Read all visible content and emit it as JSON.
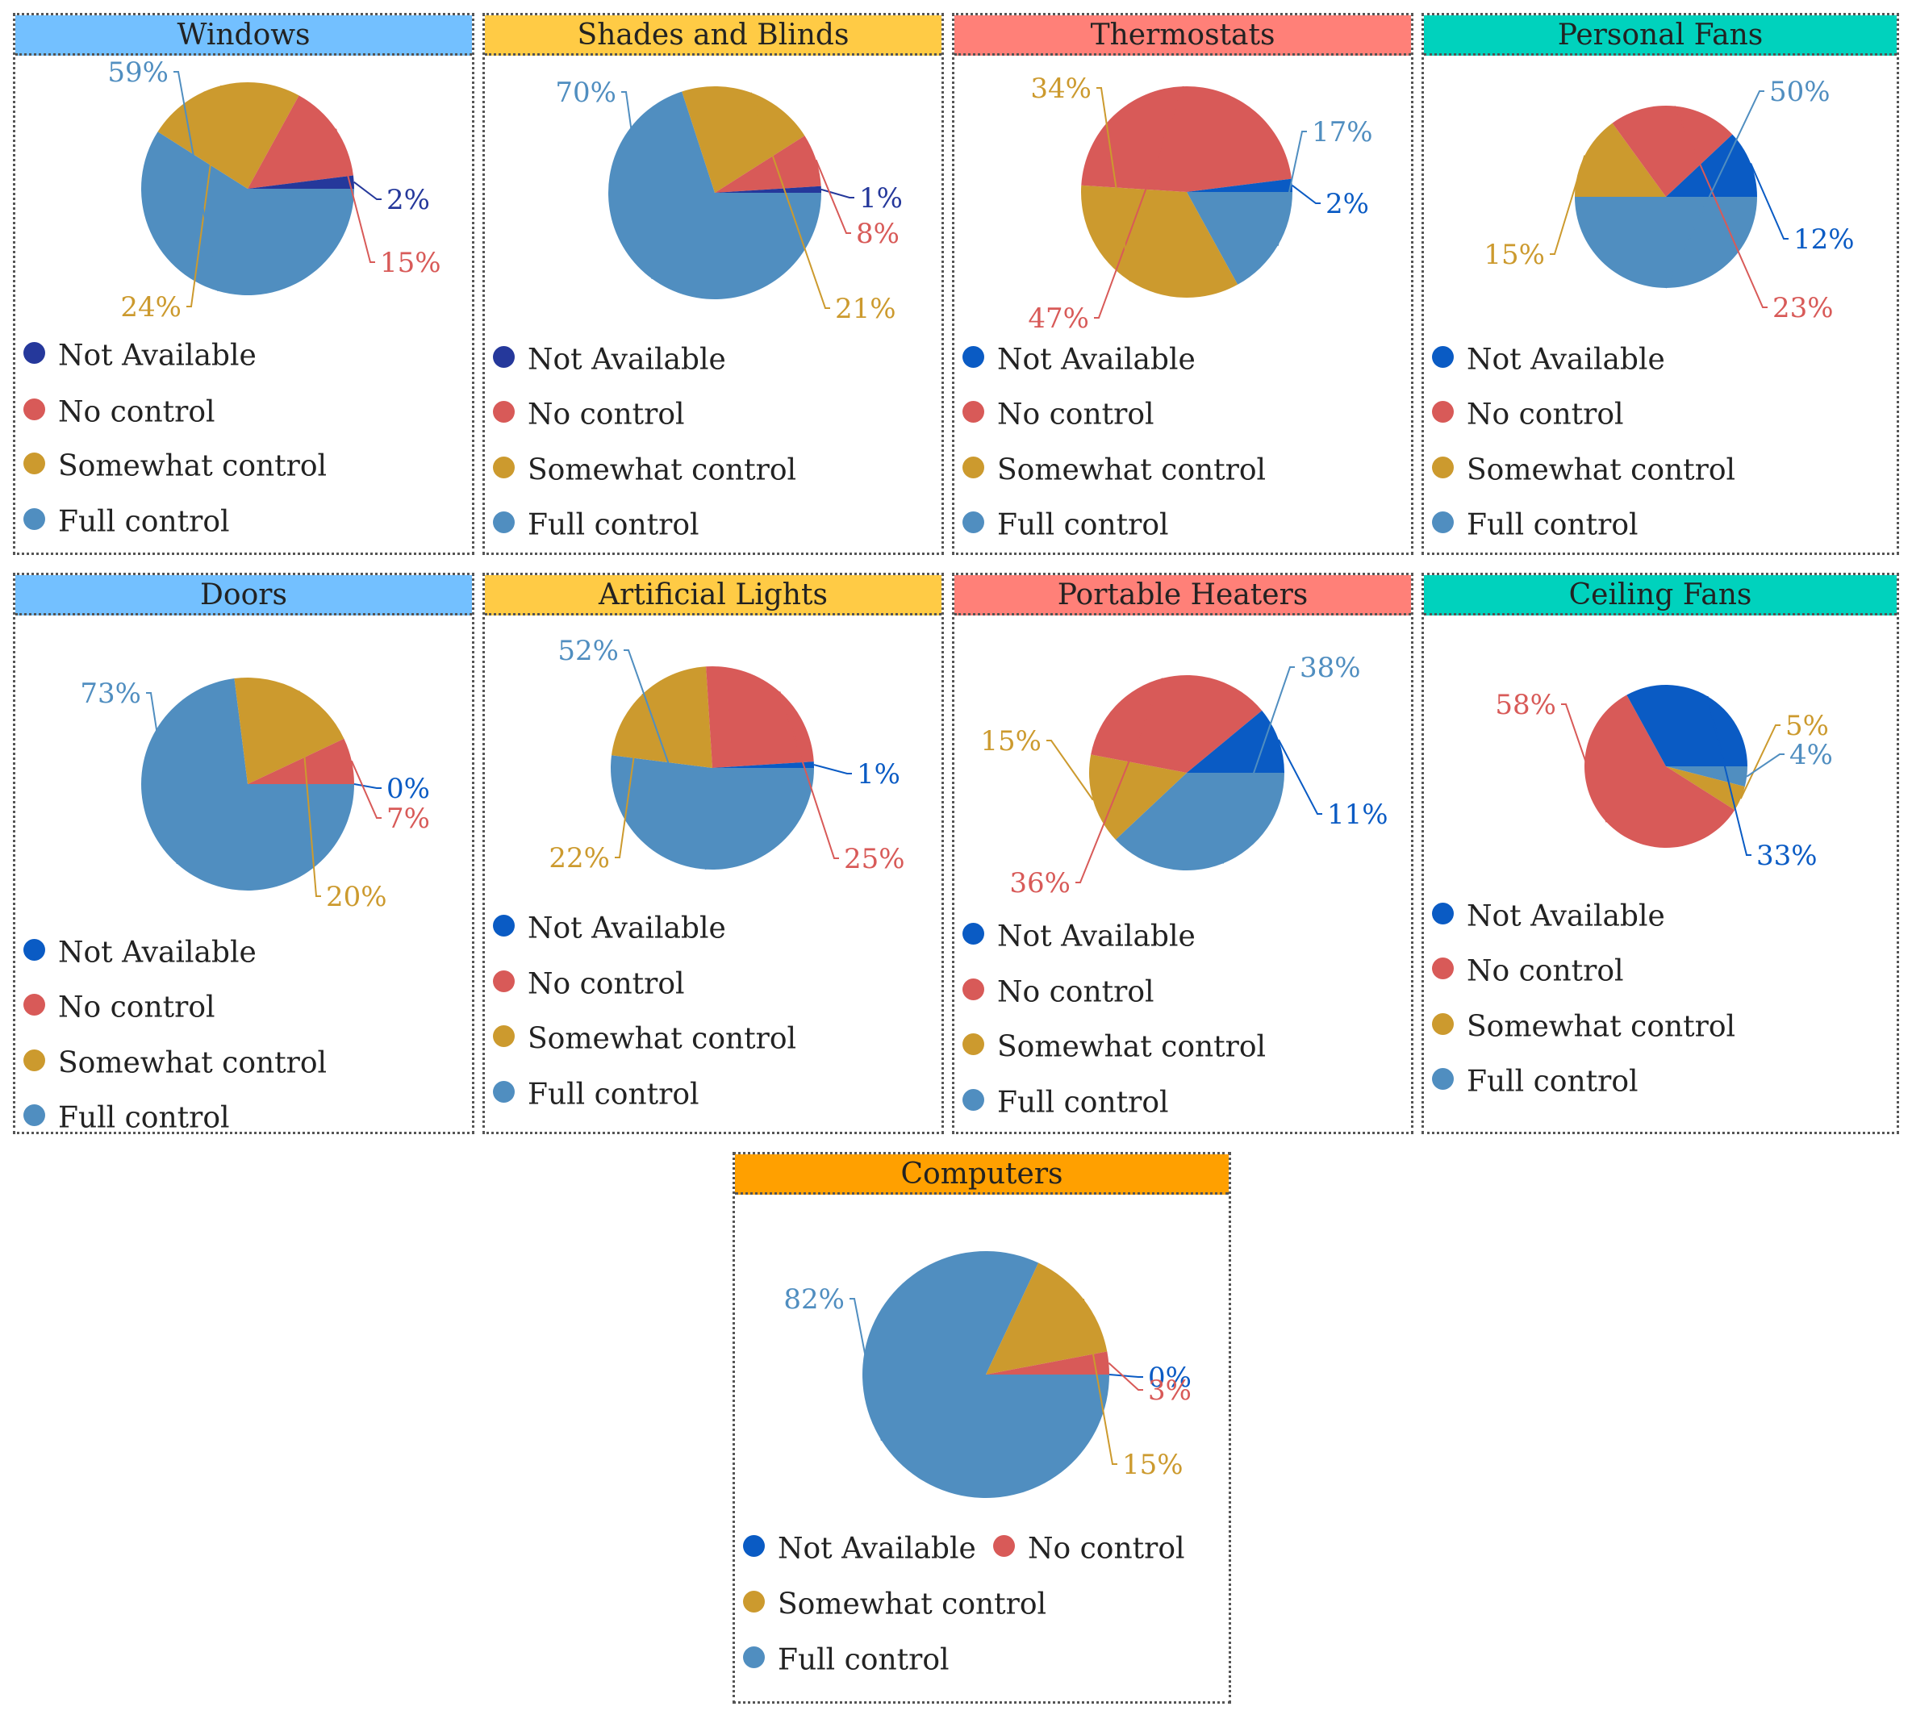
{
  "series_labels": [
    "Not Available",
    "No control",
    "Somewhat control",
    "Full control"
  ],
  "colors": {
    "not_available_dark": "#25389b",
    "not_available": "#0a5bc4",
    "no_control": "#d85a58",
    "somewhat_control": "#cc9a2e",
    "full_control": "#508ec0",
    "header_blue": "#73c0ff",
    "header_yellow": "#ffcb45",
    "header_red": "#ff8078",
    "header_teal": "#00d2bd",
    "header_orange": "#ffa000"
  },
  "chart_data": [
    {
      "type": "pie",
      "title": "Windows",
      "categories": [
        "Not Available",
        "No control",
        "Somewhat control",
        "Full control"
      ],
      "values": [
        2,
        15,
        24,
        59
      ],
      "labels": [
        "2%",
        "15%",
        "24%",
        "59%"
      ]
    },
    {
      "type": "pie",
      "title": "Shades and Blinds",
      "categories": [
        "Not Available",
        "No control",
        "Somewhat control",
        "Full control"
      ],
      "values": [
        1,
        8,
        21,
        70
      ],
      "labels": [
        "1%",
        "8%",
        "21%",
        "70%"
      ]
    },
    {
      "type": "pie",
      "title": "Thermostats",
      "categories": [
        "Not Available",
        "No control",
        "Somewhat control",
        "Full control"
      ],
      "values": [
        2,
        47,
        34,
        17
      ],
      "labels": [
        "2%",
        "47%",
        "34%",
        "17%"
      ]
    },
    {
      "type": "pie",
      "title": "Personal Fans",
      "categories": [
        "Not Available",
        "No control",
        "Somewhat control",
        "Full control"
      ],
      "values": [
        12,
        23,
        15,
        50
      ],
      "labels": [
        "12%",
        "23%",
        "15%",
        "50%"
      ]
    },
    {
      "type": "pie",
      "title": "Doors",
      "categories": [
        "Not Available",
        "No control",
        "Somewhat control",
        "Full control"
      ],
      "values": [
        0,
        7,
        20,
        73
      ],
      "labels": [
        "0%",
        "7%",
        "20%",
        "73%"
      ]
    },
    {
      "type": "pie",
      "title": "Artificial Lights",
      "categories": [
        "Not Available",
        "No control",
        "Somewhat control",
        "Full control"
      ],
      "values": [
        1,
        25,
        22,
        52
      ],
      "labels": [
        "1%",
        "25%",
        "22%",
        "52%"
      ]
    },
    {
      "type": "pie",
      "title": "Portable Heaters",
      "categories": [
        "Not Available",
        "No control",
        "Somewhat control",
        "Full control"
      ],
      "values": [
        11,
        36,
        15,
        38
      ],
      "labels": [
        "11%",
        "36%",
        "15%",
        "38%"
      ]
    },
    {
      "type": "pie",
      "title": "Ceiling Fans",
      "categories": [
        "Not Available",
        "No control",
        "Somewhat control",
        "Full control"
      ],
      "values": [
        33,
        58,
        5,
        4
      ],
      "labels": [
        "33%",
        "58%",
        "5%",
        "4%"
      ]
    },
    {
      "type": "pie",
      "title": "Computers",
      "categories": [
        "Not Available",
        "No control",
        "Somewhat control",
        "Full control"
      ],
      "values": [
        0,
        3,
        15,
        82
      ],
      "labels": [
        "0%",
        "3%",
        "15%",
        "82%"
      ]
    }
  ]
}
